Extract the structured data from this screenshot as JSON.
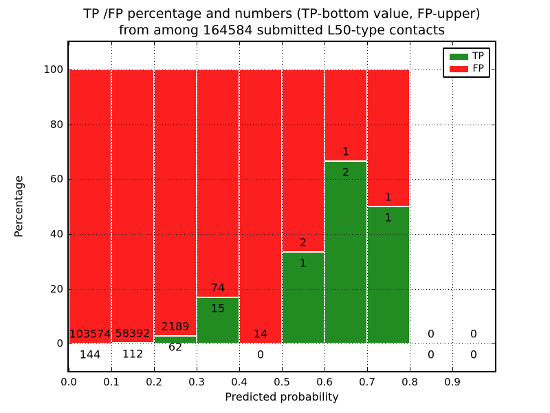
{
  "title": {
    "line1": "TP /FP percentage and numbers (TP-bottom value, FP-upper)",
    "line2": "from among 164584 submitted L50-type contacts"
  },
  "axes": {
    "xlabel": "Predicted probability",
    "ylabel": "Percentage",
    "x_tick_labels": [
      "0.0",
      "0.1",
      "0.2",
      "0.3",
      "0.4",
      "0.5",
      "0.6",
      "0.7",
      "0.8",
      "0.9"
    ],
    "y_tick_labels": [
      "0",
      "20",
      "40",
      "60",
      "80",
      "100"
    ],
    "grid": "dotted"
  },
  "legend": {
    "position": "upper right",
    "entries": [
      {
        "label": "TP",
        "color": "#228B22"
      },
      {
        "label": "FP",
        "color": "#FB1F1F"
      }
    ]
  },
  "chart_data": {
    "type": "bar",
    "stacked": true,
    "title": "TP /FP percentage and numbers (TP-bottom value, FP-upper) from among 164584 submitted L50-type contacts",
    "total_submitted": 164584,
    "xlabel": "Predicted probability",
    "ylabel": "Percentage",
    "xlim": [
      0.0,
      1.0
    ],
    "ylim": [
      -10,
      110
    ],
    "bin_width": 0.1,
    "tp_color": "#228B22",
    "fp_color": "#FB1F1F",
    "annotation_note": "TP count printed below segment top, FP count printed above it",
    "bins": [
      {
        "x_start": 0.0,
        "x_end": 0.1,
        "tp": 144,
        "fp": 103574,
        "tp_pct": 0.14,
        "fp_pct": 99.86
      },
      {
        "x_start": 0.1,
        "x_end": 0.2,
        "tp": 112,
        "fp": 58392,
        "tp_pct": 0.19,
        "fp_pct": 99.81
      },
      {
        "x_start": 0.2,
        "x_end": 0.3,
        "tp": 62,
        "fp": 2189,
        "tp_pct": 2.75,
        "fp_pct": 97.25
      },
      {
        "x_start": 0.3,
        "x_end": 0.4,
        "tp": 15,
        "fp": 74,
        "tp_pct": 16.85,
        "fp_pct": 83.15
      },
      {
        "x_start": 0.4,
        "x_end": 0.5,
        "tp": 0,
        "fp": 14,
        "tp_pct": 0.0,
        "fp_pct": 100.0
      },
      {
        "x_start": 0.5,
        "x_end": 0.6,
        "tp": 1,
        "fp": 2,
        "tp_pct": 33.33,
        "fp_pct": 66.67
      },
      {
        "x_start": 0.6,
        "x_end": 0.7,
        "tp": 2,
        "fp": 1,
        "tp_pct": 66.67,
        "fp_pct": 33.33
      },
      {
        "x_start": 0.7,
        "x_end": 0.8,
        "tp": 1,
        "fp": 1,
        "tp_pct": 50.0,
        "fp_pct": 50.0
      },
      {
        "x_start": 0.8,
        "x_end": 0.9,
        "tp": 0,
        "fp": 0,
        "tp_pct": null,
        "fp_pct": null
      },
      {
        "x_start": 0.9,
        "x_end": 1.0,
        "tp": 0,
        "fp": 0,
        "tp_pct": null,
        "fp_pct": null
      }
    ]
  }
}
